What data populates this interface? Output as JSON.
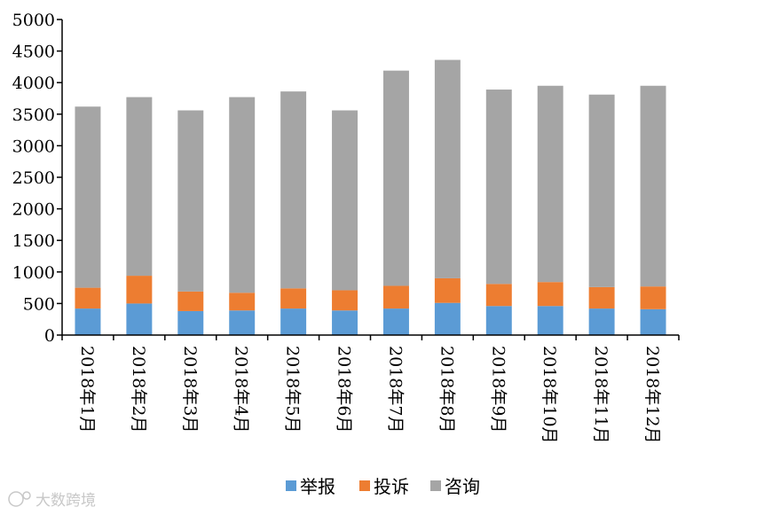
{
  "chart_data": {
    "type": "bar",
    "stacked": true,
    "categories": [
      "2018年1月",
      "2018年2月",
      "2018年3月",
      "2018年4月",
      "2018年5月",
      "2018年6月",
      "2018年7月",
      "2018年8月",
      "2018年9月",
      "2018年10月",
      "2018年11月",
      "2018年12月"
    ],
    "series": [
      {
        "name": "举报",
        "color": "#5b9bd5",
        "values": [
          420,
          500,
          380,
          390,
          420,
          390,
          420,
          510,
          460,
          460,
          420,
          410
        ]
      },
      {
        "name": "投诉",
        "color": "#ed7d31",
        "values": [
          330,
          440,
          310,
          280,
          320,
          320,
          360,
          390,
          350,
          380,
          340,
          360
        ]
      },
      {
        "name": "咨询",
        "color": "#a5a5a5",
        "values": [
          2870,
          2830,
          2870,
          3100,
          3120,
          2850,
          3410,
          3460,
          3080,
          3110,
          3050,
          3180
        ]
      }
    ],
    "yticks": [
      "0",
      "500",
      "1000",
      "1500",
      "2000",
      "2500",
      "3000",
      "3500",
      "4000",
      "4500",
      "5000"
    ],
    "ylim": [
      0,
      5000
    ],
    "title": "",
    "xlabel": "",
    "ylabel": "",
    "grid": false,
    "legend_position": "bottom"
  },
  "watermark": {
    "text": "大数跨境",
    "icon": "logo-icon"
  }
}
